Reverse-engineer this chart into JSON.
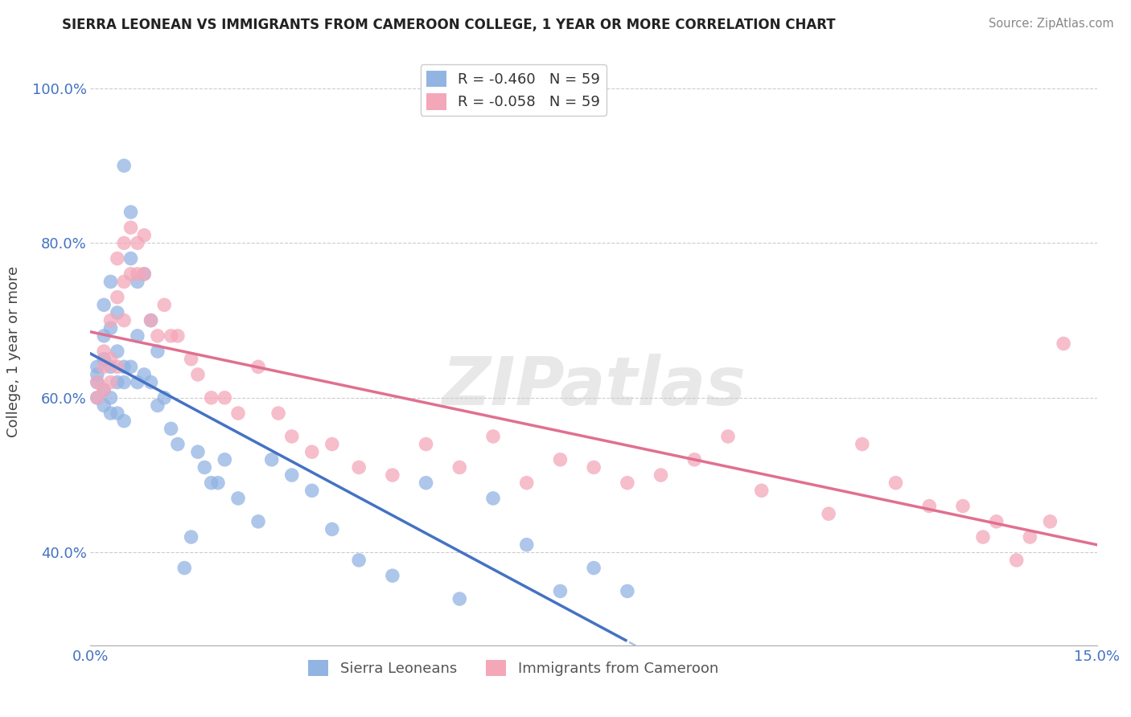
{
  "title": "SIERRA LEONEAN VS IMMIGRANTS FROM CAMEROON COLLEGE, 1 YEAR OR MORE CORRELATION CHART",
  "source": "Source: ZipAtlas.com",
  "ylabel": "College, 1 year or more",
  "xlim": [
    0.0,
    0.15
  ],
  "ylim": [
    0.28,
    1.04
  ],
  "x_ticks": [
    0.0,
    0.15
  ],
  "x_tick_labels": [
    "0.0%",
    "15.0%"
  ],
  "y_ticks": [
    0.4,
    0.6,
    0.8,
    1.0
  ],
  "y_tick_labels": [
    "40.0%",
    "60.0%",
    "80.0%",
    "100.0%"
  ],
  "R_sierra": -0.46,
  "R_cameroon": -0.058,
  "N_sierra": 59,
  "N_cameroon": 59,
  "color_sierra": "#92b4e3",
  "color_cameroon": "#f4a7b9",
  "line_color_sierra": "#4472c4",
  "line_color_cameroon": "#e07090",
  "line_color_dashed": "#a8c4e0",
  "legend_label_sierra": "Sierra Leoneans",
  "legend_label_cameroon": "Immigrants from Cameroon",
  "sierra_x": [
    0.001,
    0.001,
    0.001,
    0.001,
    0.002,
    0.002,
    0.002,
    0.002,
    0.002,
    0.003,
    0.003,
    0.003,
    0.003,
    0.003,
    0.004,
    0.004,
    0.004,
    0.004,
    0.005,
    0.005,
    0.005,
    0.005,
    0.006,
    0.006,
    0.006,
    0.007,
    0.007,
    0.007,
    0.008,
    0.008,
    0.009,
    0.009,
    0.01,
    0.01,
    0.011,
    0.012,
    0.013,
    0.014,
    0.015,
    0.016,
    0.017,
    0.018,
    0.019,
    0.02,
    0.022,
    0.025,
    0.027,
    0.03,
    0.033,
    0.036,
    0.04,
    0.045,
    0.05,
    0.055,
    0.06,
    0.065,
    0.07,
    0.075,
    0.08
  ],
  "sierra_y": [
    0.62,
    0.63,
    0.64,
    0.6,
    0.68,
    0.72,
    0.65,
    0.59,
    0.61,
    0.75,
    0.69,
    0.64,
    0.6,
    0.58,
    0.71,
    0.66,
    0.62,
    0.58,
    0.9,
    0.64,
    0.62,
    0.57,
    0.84,
    0.78,
    0.64,
    0.75,
    0.68,
    0.62,
    0.76,
    0.63,
    0.7,
    0.62,
    0.66,
    0.59,
    0.6,
    0.56,
    0.54,
    0.38,
    0.42,
    0.53,
    0.51,
    0.49,
    0.49,
    0.52,
    0.47,
    0.44,
    0.52,
    0.5,
    0.48,
    0.43,
    0.39,
    0.37,
    0.49,
    0.34,
    0.47,
    0.41,
    0.35,
    0.38,
    0.35
  ],
  "cameroon_x": [
    0.001,
    0.001,
    0.002,
    0.002,
    0.002,
    0.003,
    0.003,
    0.003,
    0.004,
    0.004,
    0.004,
    0.005,
    0.005,
    0.005,
    0.006,
    0.006,
    0.007,
    0.007,
    0.008,
    0.008,
    0.009,
    0.01,
    0.011,
    0.012,
    0.013,
    0.015,
    0.016,
    0.018,
    0.02,
    0.022,
    0.025,
    0.028,
    0.03,
    0.033,
    0.036,
    0.04,
    0.045,
    0.05,
    0.055,
    0.06,
    0.065,
    0.07,
    0.075,
    0.08,
    0.085,
    0.09,
    0.095,
    0.1,
    0.11,
    0.115,
    0.12,
    0.125,
    0.13,
    0.133,
    0.135,
    0.138,
    0.14,
    0.143,
    0.145
  ],
  "cameroon_y": [
    0.62,
    0.6,
    0.66,
    0.64,
    0.61,
    0.7,
    0.65,
    0.62,
    0.78,
    0.73,
    0.64,
    0.8,
    0.75,
    0.7,
    0.82,
    0.76,
    0.8,
    0.76,
    0.81,
    0.76,
    0.7,
    0.68,
    0.72,
    0.68,
    0.68,
    0.65,
    0.63,
    0.6,
    0.6,
    0.58,
    0.64,
    0.58,
    0.55,
    0.53,
    0.54,
    0.51,
    0.5,
    0.54,
    0.51,
    0.55,
    0.49,
    0.52,
    0.51,
    0.49,
    0.5,
    0.52,
    0.55,
    0.48,
    0.45,
    0.54,
    0.49,
    0.46,
    0.46,
    0.42,
    0.44,
    0.39,
    0.42,
    0.44,
    0.67
  ]
}
